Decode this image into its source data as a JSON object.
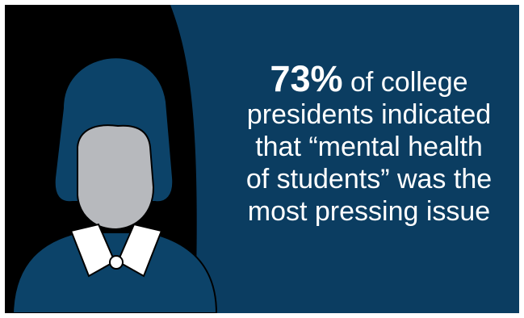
{
  "infographic": {
    "percent": "73%",
    "line1_rest": " of college",
    "line2": "presidents indicated",
    "line3": "that “mental health",
    "line4": "of students” was the",
    "line5": "most pressing issue"
  },
  "colors": {
    "background": "#0b3d61",
    "left_panel": "#000000",
    "hair": "#0c4369",
    "face": "#b7b9bd",
    "collar": "#ffffff",
    "text": "#ffffff"
  },
  "icons": {
    "figure": "woman-silhouette-icon"
  }
}
